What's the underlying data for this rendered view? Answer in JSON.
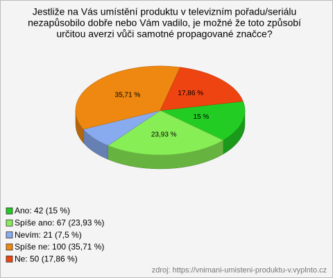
{
  "chart_data": {
    "type": "pie3d",
    "title": [
      "Jestliže na Vás umístění produktu v televizním pořadu/seriálu",
      "nezapůsobilo dobře nebo Vám vadilo, je možné že toto způsobí",
      "určitou averzi vůči samotné propagované značce?"
    ],
    "categories": [
      "Ano: 42 (15 %)",
      "Spíše ano: 67 (23,93 %)",
      "Nevím: 21 (7,5 %)",
      "Spíše ne: 100 (35,71 %)",
      "Ne: 50 (17,86 %)"
    ],
    "values": [
      15,
      23.93,
      7.5,
      35.71,
      17.86
    ],
    "value_labels": [
      "15 %",
      "23,93 %",
      null,
      "35,71 %",
      "17,86 %"
    ],
    "colors": [
      "#22cc22",
      "#88ee55",
      "#88aaee",
      "#ee8811",
      "#ee4411"
    ],
    "source": "zdroj: https://vnimani-umisteni-produktu-v.vyplnto.cz"
  }
}
